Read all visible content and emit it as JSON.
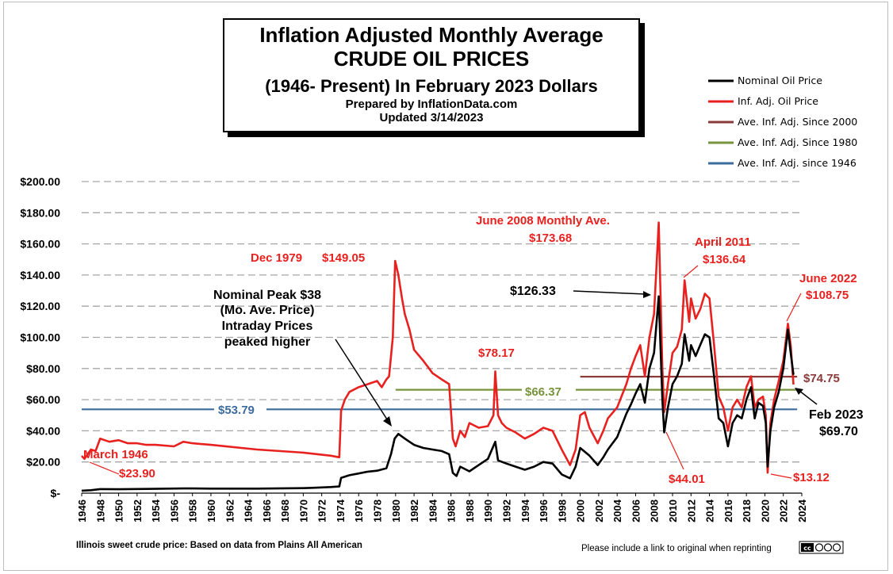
{
  "title": {
    "line1": "Inflation Adjusted Monthly Average",
    "line2": "CRUDE OIL PRICES",
    "line3": "(1946- Present) In February 2023 Dollars",
    "line4": "Prepared by InflationData.com",
    "line5": "Updated 3/14/2023"
  },
  "legend": {
    "items": [
      {
        "label": "Nominal Oil Price",
        "color": "#000000"
      },
      {
        "label": "Inf. Adj. Oil Price",
        "color": "#e8211f"
      },
      {
        "label": "Ave. Inf. Adj. Since 2000",
        "color": "#8b3a3a"
      },
      {
        "label": "Ave. Inf. Adj. Since 1980",
        "color": "#77933c"
      },
      {
        "label": "Ave. Inf. Adj. since 1946",
        "color": "#3d6b9e"
      }
    ]
  },
  "footer": {
    "left": "Illinois sweet crude price: Based on data from Plains All American",
    "right": "Please include a link to original when reprinting",
    "badge": "cc"
  },
  "colors": {
    "nominal": "#000000",
    "adjusted": "#e8211f",
    "avg2000": "#8b3a3a",
    "avg1980": "#77933c",
    "avg1946": "#3d6b9e",
    "grid": "#a6a6a6"
  },
  "chart_data": {
    "type": "line",
    "title": "Inflation Adjusted Monthly Average CRUDE OIL PRICES",
    "xlabel": "",
    "ylabel": "",
    "xlim": [
      1946,
      2024
    ],
    "ylim": [
      0,
      200
    ],
    "grid": true,
    "legend_position": "top-right",
    "y_ticks": [
      0,
      20,
      40,
      60,
      80,
      100,
      120,
      140,
      160,
      180,
      200
    ],
    "y_tick_labels": [
      "$-",
      "$20.00",
      "$40.00",
      "$60.00",
      "$80.00",
      "$100.00",
      "$120.00",
      "$140.00",
      "$160.00",
      "$180.00",
      "$200.00"
    ],
    "x_ticks": [
      "1946",
      "1948",
      "1950",
      "1952",
      "1954",
      "1956",
      "1958",
      "1960",
      "1962",
      "1964",
      "1966",
      "1968",
      "1970",
      "1972",
      "1974",
      "1976",
      "1978",
      "1980",
      "1982",
      "1984",
      "1986",
      "1988",
      "1990",
      "1992",
      "1994",
      "1996",
      "1998",
      "2000",
      "2002",
      "2004",
      "2006",
      "2008",
      "2010",
      "2012",
      "2014",
      "2016",
      "2018",
      "2020",
      "2022",
      "2024"
    ],
    "series": [
      {
        "name": "Nominal Oil Price",
        "x": [
          1946,
          1947,
          1948,
          1950,
          1953,
          1957,
          1958,
          1960,
          1965,
          1970,
          1971,
          1973,
          1973.9,
          1974.1,
          1975,
          1976,
          1977,
          1978,
          1979,
          1979.5,
          1979.9,
          1980.3,
          1981,
          1981.5,
          1982,
          1983,
          1984,
          1985,
          1985.8,
          1986.2,
          1986.6,
          1987,
          1988,
          1989,
          1990,
          1990.8,
          1991.1,
          1992,
          1993,
          1994,
          1995,
          1996,
          1997,
          1998,
          1998.9,
          1999.5,
          2000,
          2001,
          2001.9,
          2002.5,
          2003,
          2004,
          2005,
          2005.5,
          2006,
          2006.5,
          2007,
          2007.5,
          2008,
          2008.5,
          2008.9,
          2009.1,
          2009.5,
          2010,
          2010.5,
          2011,
          2011.3,
          2011.8,
          2012,
          2012.5,
          2013,
          2013.5,
          2014,
          2014.5,
          2015,
          2015.5,
          2016,
          2016.5,
          2017,
          2017.5,
          2018,
          2018.5,
          2018.9,
          2019.3,
          2019.8,
          2020.1,
          2020.3,
          2020.6,
          2021,
          2021.5,
          2022,
          2022.5,
          2022.8,
          2023.1
        ],
        "values": [
          1.6,
          1.9,
          2.6,
          2.5,
          2.7,
          3.0,
          3.0,
          2.9,
          2.9,
          3.2,
          3.4,
          3.9,
          4.3,
          9.8,
          11.5,
          12.6,
          13.8,
          14.4,
          16,
          25,
          35,
          38,
          35,
          33,
          31,
          29,
          28,
          27,
          25,
          13,
          11,
          17,
          14,
          18,
          22,
          33,
          21,
          19,
          17,
          15,
          17,
          20,
          19,
          12,
          9.5,
          17,
          29,
          24,
          18,
          23,
          28,
          36,
          51,
          57,
          64,
          70,
          58,
          80,
          90,
          126.33,
          60,
          39,
          55,
          70,
          75,
          83,
          102,
          85,
          95,
          88,
          95,
          102,
          100,
          75,
          48,
          45,
          30,
          45,
          50,
          48,
          60,
          68,
          48,
          58,
          56,
          45,
          17,
          40,
          55,
          65,
          80,
          105,
          90,
          76
        ],
        "color": "#000000"
      },
      {
        "name": "Inf. Adj. Oil Price",
        "x": [
          1946,
          1946.3,
          1947,
          1947.5,
          1948,
          1949,
          1950,
          1951,
          1952,
          1953,
          1954,
          1956,
          1957,
          1958,
          1960,
          1965,
          1970,
          1973,
          1973.9,
          1974.1,
          1974.5,
          1975,
          1976,
          1977,
          1978,
          1978.5,
          1979,
          1979.3,
          1979.7,
          1979.96,
          1980.3,
          1980.7,
          1981,
          1981.5,
          1982,
          1983,
          1984,
          1985,
          1985.8,
          1986.2,
          1986.5,
          1987,
          1987.5,
          1988,
          1989,
          1990,
          1990.6,
          1990.8,
          1991.1,
          1991.5,
          1992,
          1993,
          1994,
          1995,
          1996,
          1997,
          1998,
          1998.9,
          1999.5,
          2000,
          2000.5,
          2001,
          2001.9,
          2002.5,
          2003,
          2004,
          2005,
          2005.5,
          2006,
          2006.5,
          2007,
          2007.5,
          2008,
          2008.5,
          2008.9,
          2009.1,
          2009.5,
          2010,
          2010.5,
          2011,
          2011.3,
          2011.8,
          2012,
          2012.5,
          2013,
          2013.5,
          2014,
          2014.5,
          2015,
          2015.5,
          2016,
          2016.5,
          2017,
          2017.5,
          2018,
          2018.5,
          2018.9,
          2019.3,
          2019.8,
          2020.1,
          2020.3,
          2020.6,
          2021,
          2021.5,
          2022,
          2022.5,
          2022.8,
          2023.1
        ],
        "values": [
          23.9,
          22,
          28,
          27,
          35,
          33,
          34,
          32,
          32,
          31,
          31,
          30,
          33,
          32,
          31,
          28,
          26,
          24,
          23,
          53,
          60,
          65,
          68,
          70,
          72,
          68,
          73,
          75,
          100,
          149.05,
          140,
          125,
          115,
          105,
          92,
          85,
          77,
          73,
          70,
          35,
          30,
          40,
          36,
          45,
          42,
          43,
          50,
          78.17,
          50,
          45,
          42,
          39,
          35,
          38,
          42,
          40,
          28,
          18,
          28,
          50,
          52,
          42,
          32,
          40,
          48,
          55,
          70,
          80,
          88,
          95,
          75,
          100,
          115,
          173.68,
          80,
          52,
          70,
          90,
          94,
          105,
          136.64,
          110,
          125,
          112,
          118,
          128,
          125,
          95,
          62,
          55,
          40,
          55,
          60,
          55,
          68,
          75,
          55,
          60,
          62,
          50,
          13.12,
          45,
          60,
          72,
          85,
          108.75,
          95,
          69.7
        ],
        "color": "#e8211f"
      },
      {
        "name": "Ave. Inf. Adj. Since 2000",
        "x": [
          2000,
          2023.5
        ],
        "values": [
          74.75,
          74.75
        ],
        "color": "#8b3a3a"
      },
      {
        "name": "Ave. Inf. Adj. Since 1980",
        "x": [
          1980,
          2023.5
        ],
        "values": [
          66.37,
          66.37
        ],
        "color": "#77933c"
      },
      {
        "name": "Ave. Inf. Adj. since 1946",
        "x": [
          1946,
          2023.5
        ],
        "values": [
          53.79,
          53.79
        ],
        "color": "#3d6b9e"
      }
    ],
    "annotations": {
      "march1946": "March 1946",
      "march1946_val": "$23.90",
      "dec1979": "Dec 1979",
      "dec1979_val": "$149.05",
      "nominal_peak": [
        "Nominal Peak $38",
        "(Mo. Ave. Price)",
        "Intraday Prices",
        "peaked higher"
      ],
      "v7817": "$78.17",
      "june2008": "June 2008 Monthly Ave.",
      "june2008_val": "$173.68",
      "nominal2008": "$126.33",
      "april2011": "April 2011",
      "april2011_val": "$136.64",
      "june2022": "June 2022",
      "june2022_val": "$108.75",
      "avg2000": "$74.75",
      "avg1980": "$66.37",
      "avg1946": "$53.79",
      "feb2023": "Feb 2023",
      "feb2023_val": "$69.70",
      "v4401": "$44.01",
      "v1312": "$13.12"
    }
  }
}
